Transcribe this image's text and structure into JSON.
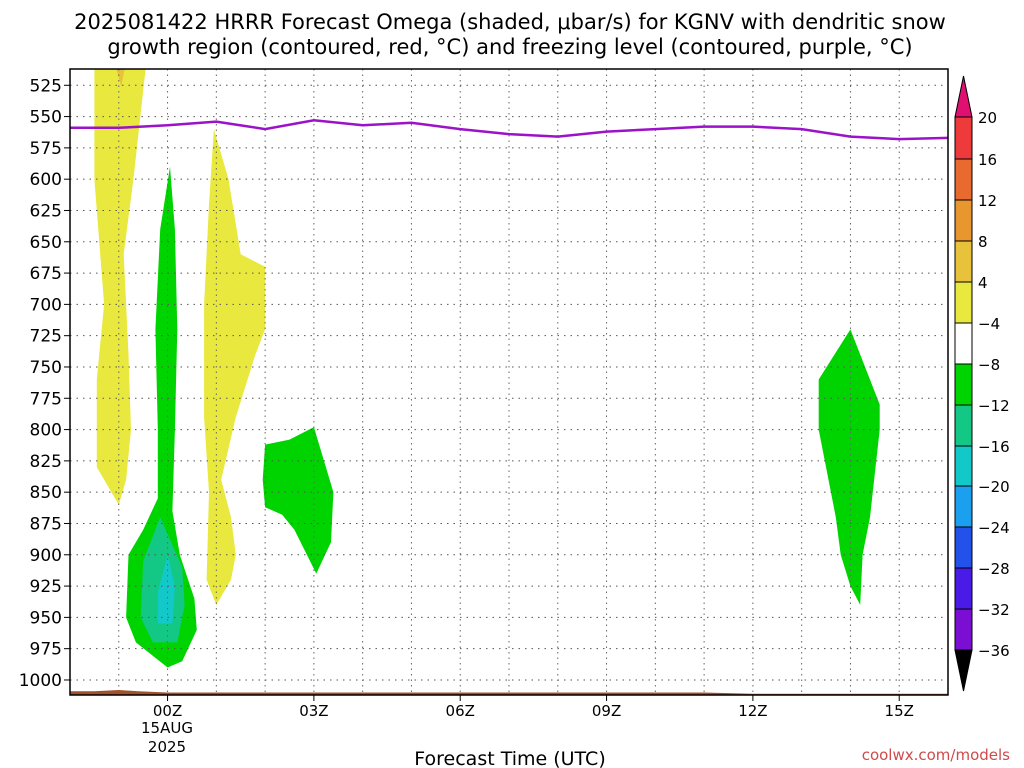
{
  "chart_data": {
    "type": "heatmap",
    "title_line1": "2025081422 HRRR Forecast Omega (shaded, μbar/s) for KGNV with dendritic snow",
    "title_line2": "growth region (contoured, red, °C) and freezing level (contoured, purple, °C)",
    "xlabel": "Forecast Time (UTC)",
    "x_ticks": [
      "00Z",
      "03Z",
      "06Z",
      "09Z",
      "12Z",
      "15Z"
    ],
    "x_tick_hours": [
      0,
      3,
      6,
      9,
      12,
      15
    ],
    "x_range_hours": [
      -2,
      16
    ],
    "x_date_lines": [
      "15AUG",
      "2025"
    ],
    "y_ticks": [
      525,
      550,
      575,
      600,
      625,
      650,
      675,
      700,
      725,
      750,
      775,
      800,
      825,
      850,
      875,
      900,
      925,
      950,
      975,
      1000
    ],
    "y_range_hpa": [
      512,
      1012
    ],
    "colorbar_labels": [
      20,
      16,
      12,
      8,
      4,
      -4,
      -8,
      -12,
      -16,
      -20,
      -24,
      -28,
      -32,
      -36
    ],
    "colorbar_colors": [
      "#e8e83e",
      "#e8c23a",
      "#e8962e",
      "#e86a2e",
      "#ee3a3a"
    ],
    "colorbar_neg_colors": [
      "#00d400",
      "#12c884",
      "#12c8c8",
      "#1aa0ee",
      "#2252ea",
      "#4a1ae6",
      "#7a0ed2",
      "#9c0cc8",
      "#a0a0a0"
    ],
    "freezing_level": {
      "hours": [
        -2,
        -1,
        0,
        1,
        2,
        3,
        4,
        5,
        6,
        7,
        8,
        9,
        10,
        11,
        12,
        13,
        14,
        15,
        16
      ],
      "hpa": [
        559,
        559,
        557,
        554,
        560,
        553,
        557,
        555,
        560,
        564,
        566,
        562,
        560,
        558,
        558,
        560,
        566,
        568,
        567
      ]
    },
    "shaded_regions": [
      {
        "name": "yellow-band-left",
        "value": 6,
        "points": [
          [
            -1.5,
            512
          ],
          [
            -0.45,
            512
          ],
          [
            -0.7,
            600
          ],
          [
            -0.9,
            660
          ],
          [
            -0.8,
            740
          ],
          [
            -0.75,
            800
          ],
          [
            -0.85,
            840
          ],
          [
            -1.0,
            860
          ],
          [
            -1.45,
            830
          ],
          [
            -1.45,
            760
          ],
          [
            -1.3,
            700
          ],
          [
            -1.5,
            600
          ]
        ]
      },
      {
        "name": "orange-spot-top",
        "value": 9,
        "points": [
          [
            -1.05,
            512
          ],
          [
            -0.88,
            512
          ],
          [
            -0.95,
            526
          ]
        ]
      },
      {
        "name": "yellow-band-center",
        "value": 6,
        "points": [
          [
            0.95,
            560
          ],
          [
            1.25,
            600
          ],
          [
            1.5,
            660
          ],
          [
            2.0,
            670
          ],
          [
            2.0,
            720
          ],
          [
            1.8,
            740
          ],
          [
            1.4,
            790
          ],
          [
            1.1,
            840
          ],
          [
            1.3,
            870
          ],
          [
            1.4,
            900
          ],
          [
            1.3,
            920
          ],
          [
            1.0,
            940
          ],
          [
            0.8,
            920
          ],
          [
            0.85,
            850
          ],
          [
            0.75,
            790
          ],
          [
            0.75,
            700
          ],
          [
            0.85,
            620
          ]
        ]
      },
      {
        "name": "green-column-left",
        "value": -6,
        "points": [
          [
            0.05,
            590
          ],
          [
            0.15,
            640
          ],
          [
            0.2,
            720
          ],
          [
            0.15,
            800
          ],
          [
            0.1,
            865
          ],
          [
            0.25,
            900
          ],
          [
            0.55,
            935
          ],
          [
            0.6,
            960
          ],
          [
            0.3,
            985
          ],
          [
            0.0,
            990
          ],
          [
            -0.65,
            970
          ],
          [
            -0.85,
            950
          ],
          [
            -0.8,
            900
          ],
          [
            -0.5,
            880
          ],
          [
            -0.2,
            855
          ],
          [
            -0.2,
            800
          ],
          [
            -0.25,
            720
          ],
          [
            -0.15,
            640
          ]
        ]
      },
      {
        "name": "teal-core",
        "value": -10,
        "points": [
          [
            -0.15,
            870
          ],
          [
            0.3,
            910
          ],
          [
            0.35,
            940
          ],
          [
            0.2,
            970
          ],
          [
            -0.3,
            970
          ],
          [
            -0.55,
            950
          ],
          [
            -0.5,
            905
          ]
        ]
      },
      {
        "name": "cyan-core",
        "value": -14,
        "points": [
          [
            0.0,
            900
          ],
          [
            0.15,
            925
          ],
          [
            0.1,
            955
          ],
          [
            -0.2,
            955
          ],
          [
            -0.2,
            930
          ]
        ]
      },
      {
        "name": "green-blob-center",
        "value": -6,
        "points": [
          [
            2.0,
            812
          ],
          [
            2.5,
            808
          ],
          [
            3.0,
            798
          ],
          [
            3.4,
            850
          ],
          [
            3.35,
            890
          ],
          [
            3.05,
            915
          ],
          [
            2.6,
            880
          ],
          [
            2.35,
            868
          ],
          [
            2.0,
            862
          ],
          [
            1.95,
            840
          ]
        ]
      },
      {
        "name": "green-blob-right",
        "value": -6,
        "points": [
          [
            14.0,
            720
          ],
          [
            14.6,
            780
          ],
          [
            14.6,
            800
          ],
          [
            14.4,
            870
          ],
          [
            14.25,
            900
          ],
          [
            14.2,
            940
          ],
          [
            14.0,
            925
          ],
          [
            13.8,
            900
          ],
          [
            13.7,
            870
          ],
          [
            13.35,
            800
          ],
          [
            13.35,
            760
          ]
        ]
      }
    ]
  },
  "credit": "coolwx.com/models"
}
